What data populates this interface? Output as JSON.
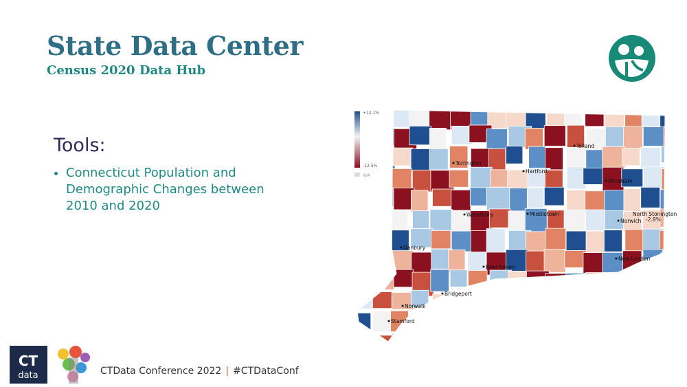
{
  "header": {
    "title": "State Data Center",
    "subtitle": "Census 2020 Data Hub"
  },
  "section": {
    "heading": "Tools:",
    "bullets": [
      "Connecticut Population and Demographic Changes between 2010 and 2020"
    ]
  },
  "map": {
    "legend": {
      "max": "+12.1%",
      "min": "-12.5%",
      "na": "N/A"
    },
    "towns": [
      {
        "name": "Torrington"
      },
      {
        "name": "Hartford"
      },
      {
        "name": "Tolland"
      },
      {
        "name": "Windham"
      },
      {
        "name": "Waterbury"
      },
      {
        "name": "Middletown"
      },
      {
        "name": "Norwich"
      },
      {
        "name": "Danbury"
      },
      {
        "name": "New Haven"
      },
      {
        "name": "New London"
      },
      {
        "name": "Bridgeport"
      },
      {
        "name": "Norwalk"
      },
      {
        "name": "Stamford"
      }
    ],
    "callout": {
      "name": "North Stonington",
      "value": "-2.8%"
    }
  },
  "footer": {
    "logo_top": "CT",
    "logo_bottom": "data",
    "text": "CTData Conference 2022",
    "separator": "|",
    "hashtag": "#CTDataConf"
  }
}
